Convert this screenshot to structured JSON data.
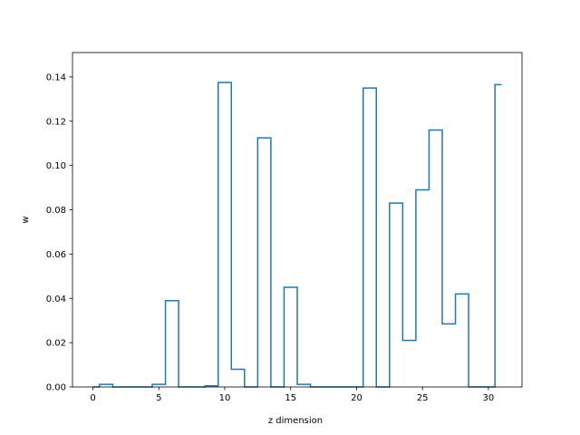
{
  "chart_data": {
    "type": "line",
    "drawstyle": "steps-mid",
    "title": "",
    "xlabel": "z dimension",
    "ylabel": "w",
    "xlim": [
      -1.55,
      32.55
    ],
    "ylim": [
      0,
      0.151
    ],
    "xticks": [
      0,
      5,
      10,
      15,
      20,
      25,
      30
    ],
    "yticks": [
      0.0,
      0.02,
      0.04,
      0.06,
      0.08,
      0.1,
      0.12,
      0.14
    ],
    "ytick_labels": [
      "0.00",
      "0.02",
      "0.04",
      "0.06",
      "0.08",
      "0.10",
      "0.12",
      "0.14"
    ],
    "grid": false,
    "line_color": "#1f77b4",
    "series": [
      {
        "x": [
          0,
          1,
          2,
          3,
          4,
          5,
          6,
          7,
          8,
          9,
          10,
          11,
          12,
          13,
          14,
          15,
          16,
          17,
          18,
          19,
          20,
          21,
          22,
          23,
          24,
          25,
          26,
          27,
          28,
          29,
          30,
          31
        ],
        "values": [
          0.0,
          0.0012,
          0.0,
          0.0,
          0.0,
          0.0012,
          0.039,
          0.0,
          0.0,
          0.0005,
          0.1375,
          0.008,
          0.0,
          0.1125,
          0.0,
          0.045,
          0.0012,
          0.0,
          0.0,
          0.0,
          0.0,
          0.135,
          0.0,
          0.083,
          0.021,
          0.089,
          0.116,
          0.0285,
          0.042,
          0.0,
          0.0,
          0.1365
        ]
      }
    ]
  }
}
